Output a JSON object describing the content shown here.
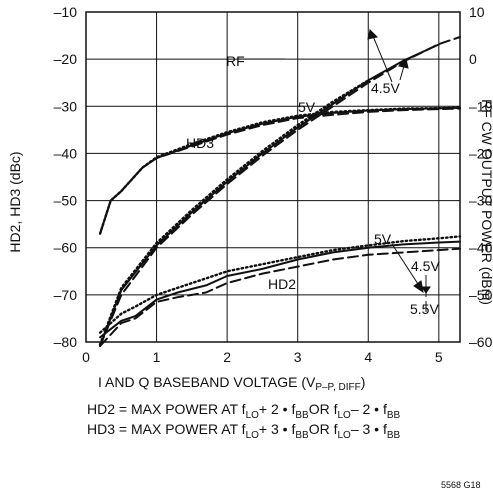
{
  "chart_data": {
    "type": "line",
    "xlabel": "I AND Q BASEBAND VOLTAGE (V",
    "xlabel_sub": "P–P, DIFF",
    "xlabel_end": ")",
    "ylabel_left": "HD2, HD3 (dBc)",
    "ylabel_right": "RF CW OUTPUT POWER (dBm)",
    "xlim": [
      0,
      5.3
    ],
    "ylim_left": [
      -80,
      -10
    ],
    "ylim_right": [
      -60,
      10
    ],
    "x_ticks": [
      "0",
      "1",
      "2",
      "3",
      "4",
      "5"
    ],
    "y_left_ticks": [
      "–10",
      "–20",
      "–30",
      "–40",
      "–50",
      "–60",
      "–70",
      "–80"
    ],
    "y_right_ticks": [
      "10",
      "0",
      "–10",
      "–20",
      "–30",
      "–40",
      "–50",
      "–60"
    ],
    "grid": true,
    "annotations": {
      "rf": "RF",
      "hd3": "HD3",
      "hd2": "HD2",
      "v5_top": "5V",
      "v45_top": "4.5V",
      "v5_bottom": "5V",
      "v45_bottom": "4.5V",
      "v55_bottom": "5.5V"
    },
    "series": [
      {
        "group": "RF",
        "style": "dashed",
        "axis": "right",
        "x": [
          0.2,
          0.35,
          0.5,
          0.8,
          1.0,
          1.5,
          2.0,
          2.5,
          3.0,
          3.5,
          4.0,
          4.5,
          5.0,
          5.3
        ],
        "y": [
          -37,
          -30,
          -28,
          -23,
          -21,
          -18.5,
          -16,
          -14,
          -12.5,
          -11.8,
          -11.2,
          -10.8,
          -10.6,
          -10.5
        ]
      },
      {
        "group": "RF",
        "style": "solid",
        "axis": "right",
        "x": [
          0.2,
          0.35,
          0.5,
          0.8,
          1.0,
          1.5,
          2.0,
          2.5,
          3.0,
          3.5,
          4.0,
          4.5,
          5.0,
          5.3
        ],
        "y": [
          -37,
          -30,
          -28,
          -23,
          -21,
          -18.3,
          -15.7,
          -13.7,
          -12.2,
          -11.4,
          -10.9,
          -10.6,
          -10.4,
          -10.3
        ]
      },
      {
        "group": "RF",
        "style": "dotted",
        "axis": "right",
        "x": [
          0.2,
          0.35,
          0.5,
          0.8,
          1.0,
          1.5,
          2.0,
          2.5,
          3.0,
          3.5,
          4.0,
          4.5,
          5.0,
          5.3
        ],
        "y": [
          -37,
          -30,
          -28,
          -23,
          -20.8,
          -18,
          -15.5,
          -13.4,
          -12,
          -11.2,
          -10.8,
          -10.5,
          -10.4,
          -10.3
        ]
      },
      {
        "group": "HD3",
        "style": "dashed",
        "axis": "left",
        "x": [
          0.2,
          0.5,
          1.0,
          1.5,
          2.0,
          2.5,
          3.0,
          3.5,
          4.0,
          4.5,
          5.0,
          5.3
        ],
        "y": [
          -82,
          -70,
          -60,
          -53,
          -46.5,
          -40.5,
          -35,
          -30,
          -25,
          -20.5,
          -16.8,
          -15.3
        ]
      },
      {
        "group": "HD3",
        "style": "solid",
        "axis": "left",
        "x": [
          0.2,
          0.5,
          1.0,
          1.5,
          2.0,
          2.5,
          3.0,
          3.5,
          4.0,
          4.5,
          5.0
        ],
        "y": [
          -81,
          -69,
          -59.5,
          -52.5,
          -46,
          -40,
          -34.5,
          -29.5,
          -24.5,
          -20.3,
          -16.9
        ]
      },
      {
        "group": "HD3",
        "style": "dotted",
        "axis": "left",
        "x": [
          0.2,
          0.5,
          1.0,
          1.5,
          2.0,
          2.5,
          3.0,
          3.5,
          4.0
        ],
        "y": [
          -80.5,
          -68.5,
          -59,
          -52,
          -45.5,
          -39.5,
          -34,
          -29,
          -24.5
        ]
      },
      {
        "group": "HD2",
        "style": "dashed",
        "axis": "left",
        "x": [
          0.2,
          0.5,
          0.7,
          1.0,
          1.3,
          1.7,
          2.0,
          2.5,
          3.0,
          3.5,
          4.0,
          4.5,
          5.0,
          5.3
        ],
        "y": [
          -82,
          -76,
          -75,
          -71.5,
          -70.5,
          -69.5,
          -67.5,
          -65.5,
          -64,
          -62.5,
          -61.5,
          -61,
          -60.5,
          -60.2
        ]
      },
      {
        "group": "HD2",
        "style": "solid",
        "axis": "left",
        "x": [
          0.2,
          0.5,
          0.7,
          1.0,
          1.3,
          1.7,
          2.0,
          2.5,
          3.0,
          3.5,
          4.0,
          4.5,
          5.0,
          5.3
        ],
        "y": [
          -79,
          -75.5,
          -74.5,
          -71,
          -69.5,
          -68,
          -66,
          -64.5,
          -62.5,
          -61,
          -60,
          -59.3,
          -58.9,
          -58.7
        ]
      },
      {
        "group": "HD2",
        "style": "dotted",
        "axis": "left",
        "x": [
          0.2,
          0.5,
          0.7,
          1.0,
          1.3,
          1.7,
          2.0,
          2.5,
          3.0,
          3.5,
          4.0,
          4.5,
          5.0,
          5.3
        ],
        "y": [
          -78,
          -74,
          -72.5,
          -70,
          -68.5,
          -66.5,
          -65,
          -63.5,
          -62,
          -60.5,
          -59.5,
          -58.6,
          -58,
          -57.6
        ]
      }
    ]
  },
  "notes": {
    "line1": [
      "HD2 = MAX POWER AT f",
      "LO",
      " + 2 • f",
      "BB",
      " OR f",
      "LO",
      " – 2 • f",
      "BB"
    ],
    "line2": [
      "HD3 = MAX POWER AT f",
      "LO",
      " + 3 • f",
      "BB",
      " OR f",
      "LO",
      " – 3 • f",
      "BB"
    ]
  },
  "figure_id": "5568 G18"
}
